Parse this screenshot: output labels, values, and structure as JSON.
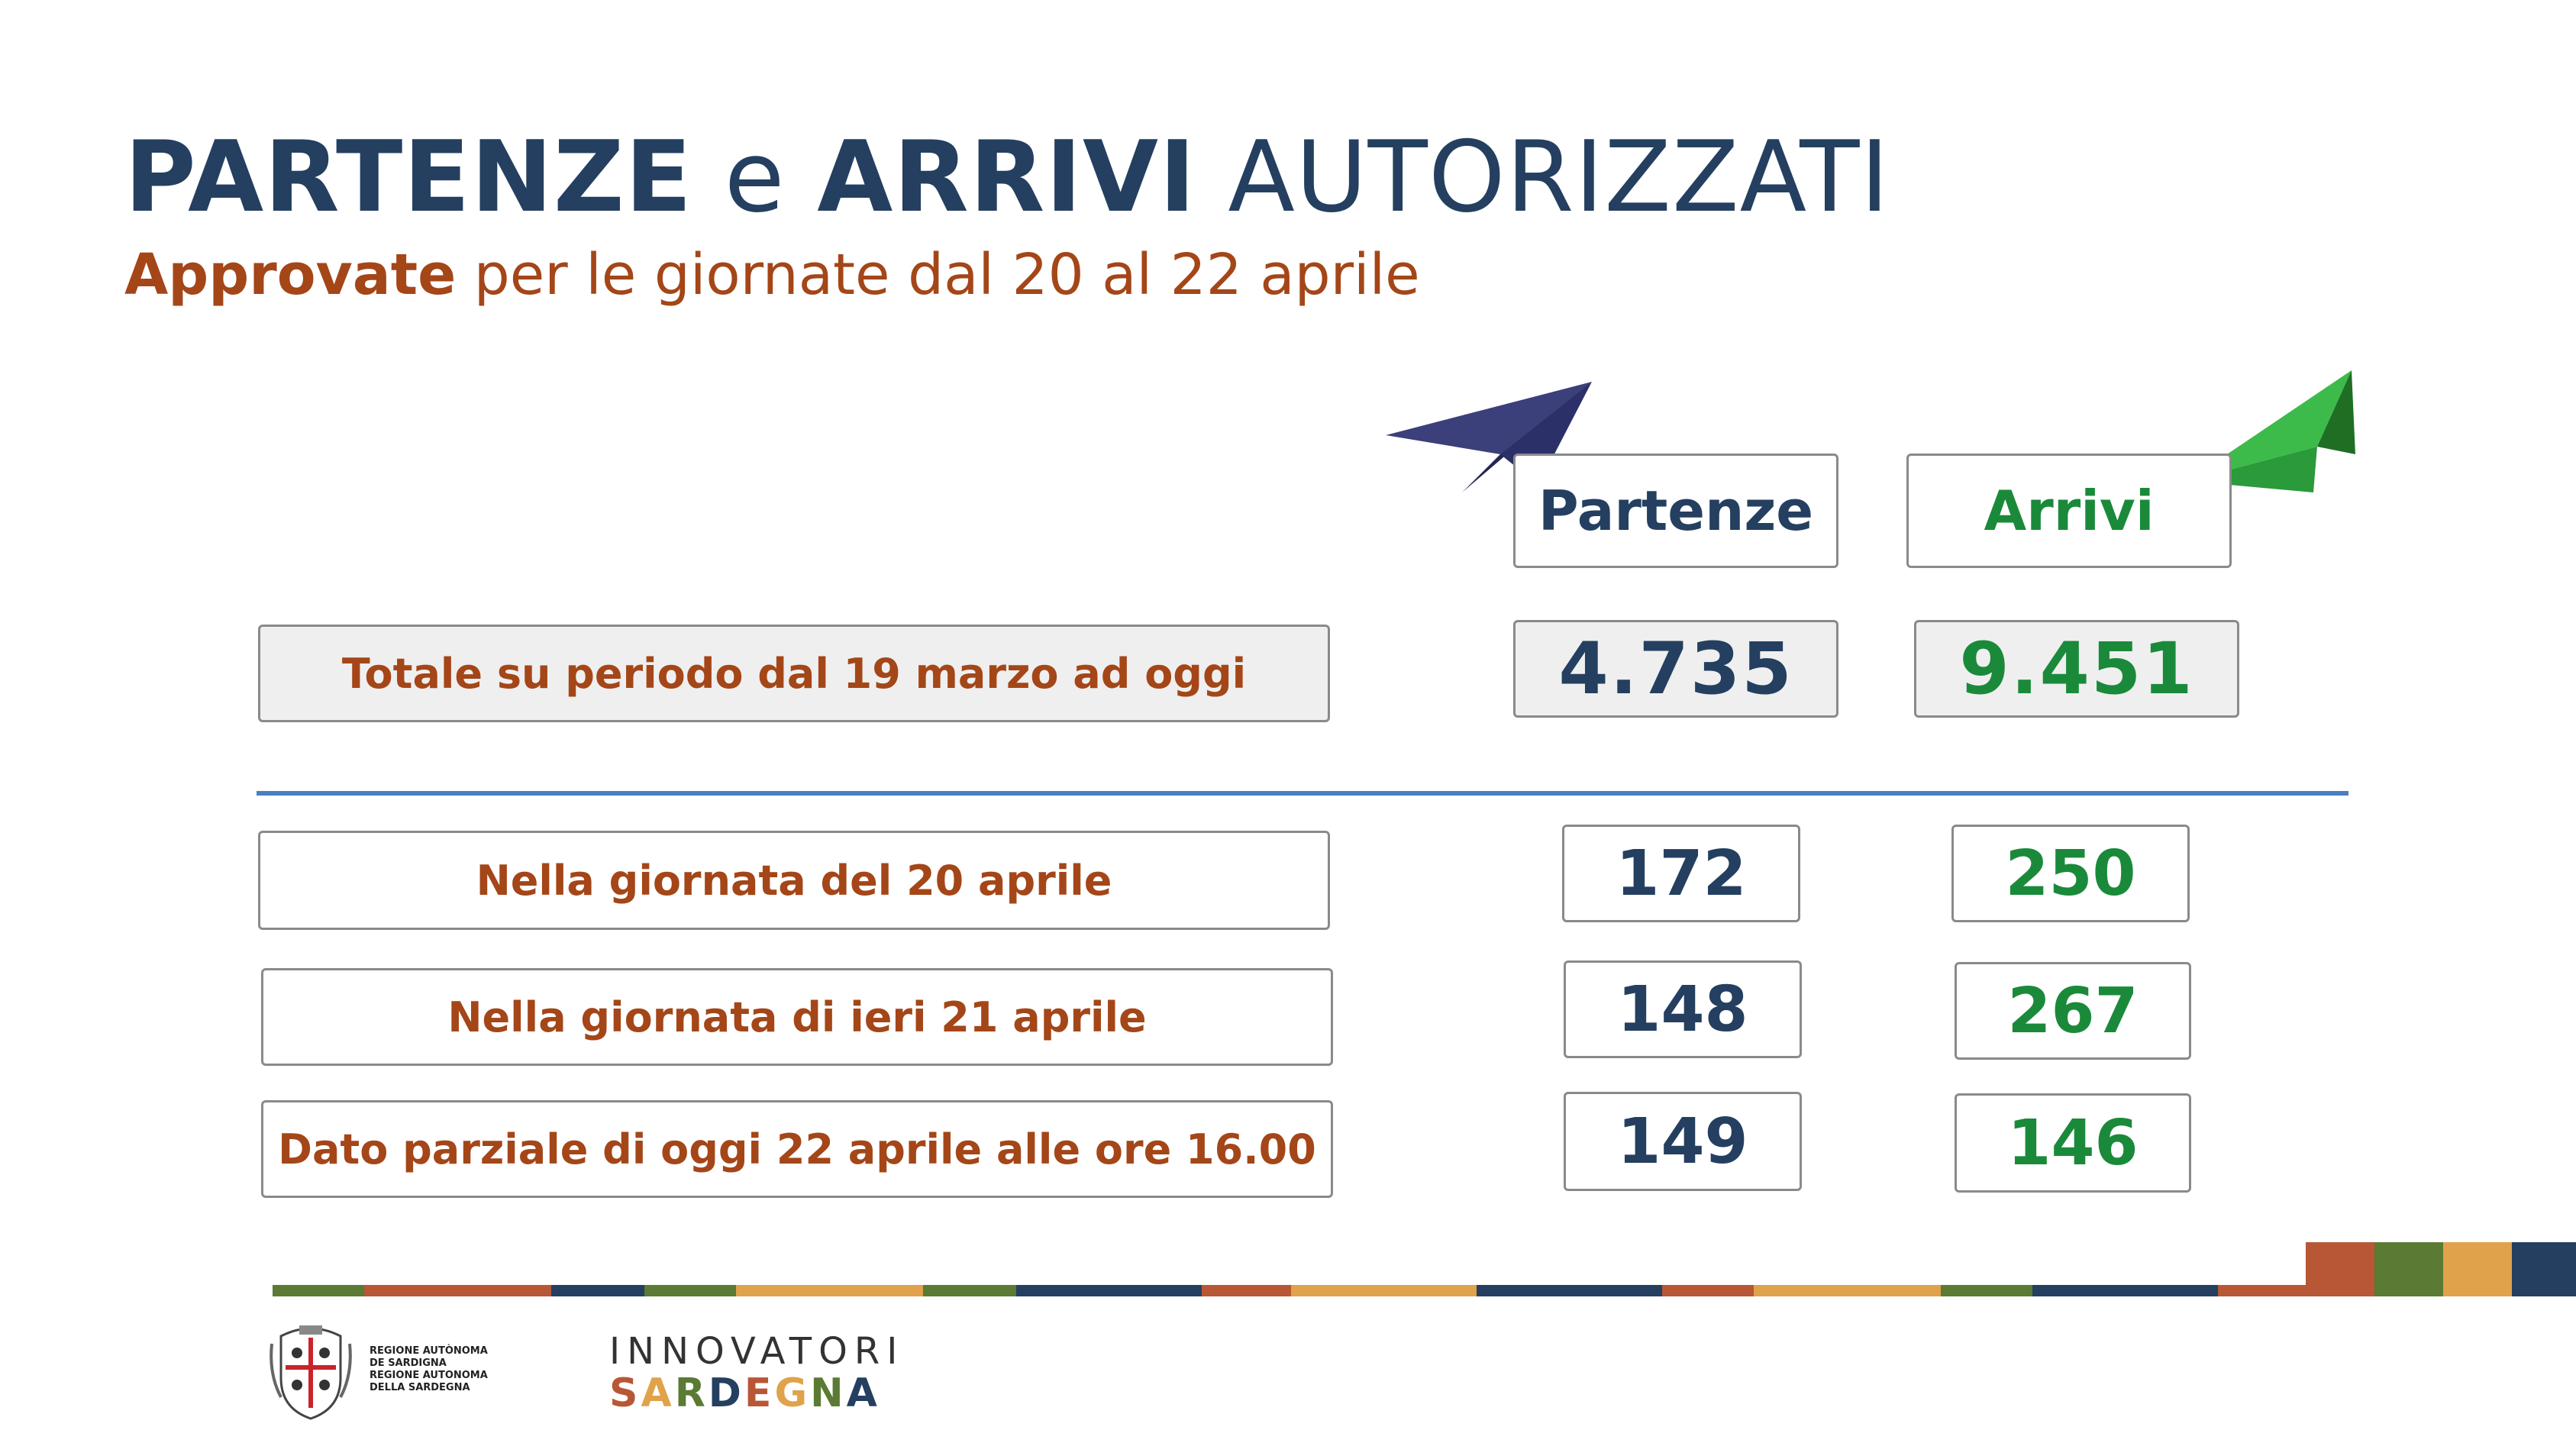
{
  "title": {
    "part1": "PARTENZE",
    "part2": "e",
    "part3": "ARRIVI",
    "part4": "AUTORIZZATI"
  },
  "subtitle": {
    "bold": "Approvate",
    "rest": " per le giornate dal 20 al 22 aprile"
  },
  "headers": {
    "partenze": "Partenze",
    "arrivi": "Arrivi"
  },
  "total": {
    "label": "Totale su periodo dal 19 marzo ad oggi",
    "partenze": "4.735",
    "arrivi": "9.451"
  },
  "rows": [
    {
      "label": "Nella giornata del 20 aprile",
      "partenze": "172",
      "arrivi": "250"
    },
    {
      "label": "Nella giornata di ieri 21 aprile",
      "partenze": "148",
      "arrivi": "267"
    },
    {
      "label": "Dato parziale di oggi 22 aprile alle ore 16.00",
      "partenze": "149",
      "arrivi": "146"
    }
  ],
  "footer": {
    "region_line1": "REGIONE AUTÒNOMA",
    "region_line2": "DE SARDIGNA",
    "region_line3": "REGIONE AUTONOMA",
    "region_line4": "DELLA SARDEGNA",
    "innovatori": "INNOVATORI",
    "sardegna": "SARDEGNA"
  },
  "colors": {
    "title_blue": "#243f60",
    "accent_brown": "#a44618",
    "partenze_blue": "#243f60",
    "arrivi_green": "#1a8a3a",
    "separator": "#4a7fbf",
    "stripe_colors": [
      "#5b7a33",
      "#b85735",
      "#243f60",
      "#e0a24a"
    ]
  },
  "icons": {
    "partenze_icon": "paper-plane-dark-blue-icon",
    "arrivi_icon": "paper-plane-green-icon"
  }
}
